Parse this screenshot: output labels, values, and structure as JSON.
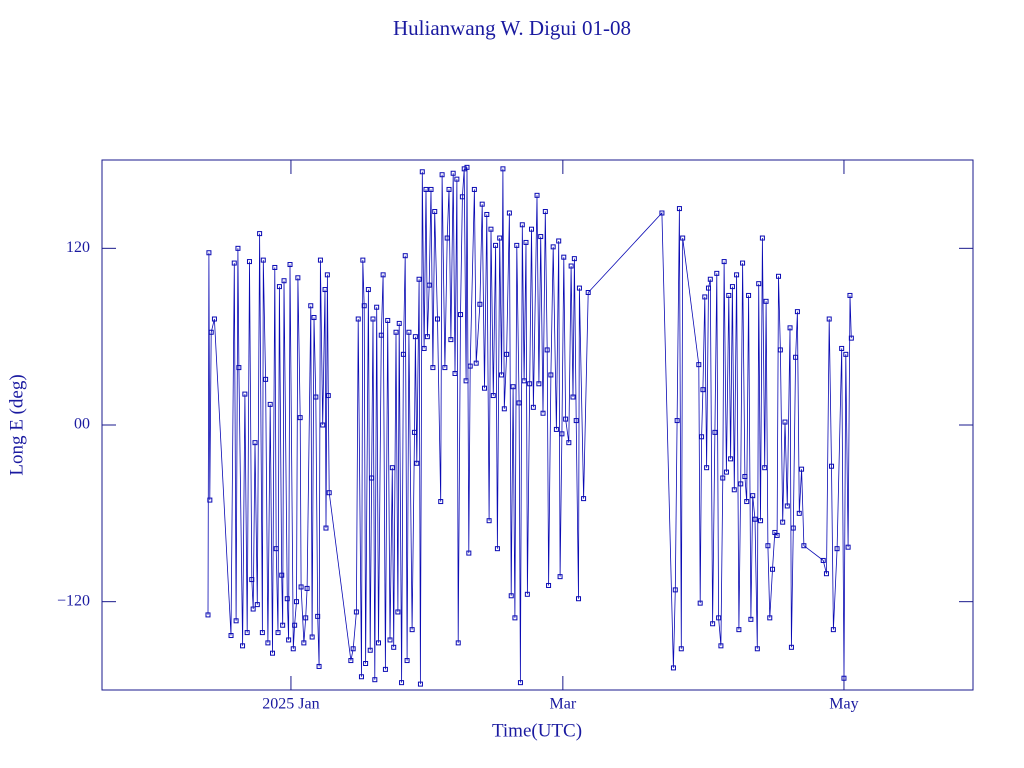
{
  "chart_data": {
    "type": "line",
    "title": "Hulianwang W. Digui 01-08",
    "xlabel": "Time(UTC)",
    "ylabel": "Long E (deg)",
    "color": "#0a0ab4",
    "axis_color": "#1a1a8c",
    "marker": "square",
    "xlim": [
      -41,
      148
    ],
    "ylim": [
      -180,
      180
    ],
    "xticks": [
      {
        "value": 0,
        "label": "2025 Jan"
      },
      {
        "value": 59,
        "label": "Mar"
      },
      {
        "value": 120,
        "label": "May"
      }
    ],
    "yticks": [
      {
        "value": -120,
        "label": "−120"
      },
      {
        "value": 0,
        "label": "00"
      },
      120
    ],
    "x": [
      -18.0,
      -17.8,
      -17.6,
      -17.3,
      -16.6,
      -13.0,
      -12.3,
      -11.9,
      -11.5,
      -11.3,
      -10.5,
      -10.0,
      -9.5,
      -9.0,
      -8.5,
      -8.2,
      -7.8,
      -7.3,
      -6.8,
      -6.2,
      -6.0,
      -5.5,
      -5.0,
      -4.5,
      -4.0,
      -3.5,
      -3.2,
      -2.8,
      -2.5,
      -2.0,
      -1.8,
      -1.5,
      -0.8,
      -0.5,
      -0.2,
      0.5,
      0.8,
      1.2,
      1.5,
      2.0,
      2.2,
      2.8,
      3.2,
      3.5,
      4.3,
      4.6,
      5.0,
      5.4,
      5.8,
      6.1,
      6.4,
      6.9,
      7.4,
      7.6,
      7.9,
      8.1,
      8.3,
      13.0,
      13.5,
      14.2,
      14.6,
      15.3,
      15.6,
      15.9,
      16.2,
      16.8,
      17.2,
      17.5,
      17.8,
      18.2,
      18.6,
      19.0,
      19.6,
      20.0,
      20.5,
      21.0,
      21.5,
      22.0,
      22.3,
      22.8,
      23.2,
      23.5,
      24.0,
      24.4,
      24.8,
      25.2,
      25.6,
      26.3,
      26.8,
      27.0,
      27.3,
      27.8,
      28.1,
      28.5,
      28.9,
      29.3,
      29.6,
      30.0,
      30.4,
      30.8,
      31.2,
      31.8,
      32.5,
      32.8,
      33.4,
      33.9,
      34.3,
      34.7,
      35.2,
      35.6,
      36.0,
      36.3,
      36.8,
      37.2,
      37.6,
      38.0,
      38.2,
      38.6,
      38.9,
      39.8,
      40.2,
      41.0,
      41.5,
      42.0,
      42.5,
      43.0,
      43.4,
      43.9,
      44.4,
      44.8,
      45.3,
      45.7,
      46.0,
      46.3,
      46.8,
      47.4,
      47.8,
      48.2,
      48.6,
      49.0,
      49.5,
      49.8,
      50.2,
      50.6,
      51.0,
      51.3,
      51.8,
      52.2,
      52.6,
      53.4,
      53.8,
      54.2,
      54.7,
      55.2,
      55.6,
      55.9,
      56.4,
      56.9,
      57.6,
      58.1,
      58.4,
      58.8,
      59.2,
      59.6,
      60.3,
      60.8,
      61.2,
      61.5,
      61.9,
      62.4,
      62.6,
      63.5,
      64.5,
      80.5,
      83.0,
      83.4,
      83.8,
      84.3,
      84.7,
      85.0,
      88.5,
      88.8,
      89.1,
      89.4,
      89.8,
      90.2,
      90.6,
      91.0,
      91.5,
      92.0,
      92.4,
      92.8,
      93.3,
      93.7,
      94.0,
      94.5,
      95.0,
      95.4,
      95.8,
      96.2,
      96.7,
      97.2,
      97.6,
      98.0,
      98.5,
      98.9,
      99.3,
      99.8,
      100.2,
      100.7,
      101.2,
      101.5,
      101.9,
      102.3,
      102.8,
      103.1,
      103.5,
      103.9,
      104.5,
      105.0,
      105.5,
      105.8,
      106.2,
      106.7,
      107.2,
      107.7,
      108.3,
      108.6,
      109.0,
      109.5,
      109.9,
      110.3,
      110.8,
      111.3,
      115.5,
      116.2,
      116.8,
      117.3,
      117.7,
      118.5,
      119.5,
      120.0,
      120.4,
      120.9,
      121.3,
      121.6
    ],
    "values": [
      -129,
      117,
      -51,
      63,
      72,
      -143,
      110,
      -133,
      120,
      39,
      -150,
      21,
      -141,
      111,
      -105,
      -125,
      -12,
      -122,
      130,
      -141,
      112,
      31,
      -148,
      14,
      -155,
      107,
      -84,
      -141,
      94,
      -102,
      -136,
      98,
      -118,
      -146,
      109,
      -152,
      -136,
      -120,
      100,
      5,
      -110,
      -148,
      -131,
      -111,
      81,
      -144,
      73,
      19,
      -130,
      -164,
      112,
      0,
      92,
      -70,
      102,
      20,
      -46,
      -160,
      -152,
      -127,
      72,
      -171,
      112,
      81,
      -162,
      92,
      -153,
      -36,
      72,
      -173,
      80,
      -148,
      61,
      102,
      -166,
      71,
      -146,
      -29,
      -151,
      63,
      -127,
      69,
      -175,
      48,
      115,
      -160,
      63,
      -139,
      -5,
      60,
      -26,
      99,
      -176,
      172,
      52,
      160,
      60,
      95,
      160,
      39,
      145,
      72,
      -52,
      170,
      39,
      127,
      160,
      58,
      171,
      35,
      167,
      -148,
      75,
      155,
      174,
      30,
      175,
      -87,
      40,
      160,
      42,
      82,
      150,
      25,
      143,
      -65,
      133,
      20,
      122,
      -84,
      127,
      34,
      174,
      11,
      48,
      144,
      -116,
      26,
      -131,
      122,
      15,
      -175,
      136,
      30,
      124,
      -115,
      28,
      133,
      12,
      156,
      28,
      128,
      8,
      145,
      51,
      -109,
      34,
      121,
      -3,
      125,
      -103,
      -6,
      114,
      4,
      -12,
      108,
      19,
      113,
      3,
      -118,
      93,
      -50,
      90,
      144,
      -165,
      -112,
      3,
      147,
      -152,
      127,
      41,
      -121,
      -8,
      24,
      87,
      -29,
      93,
      99,
      -135,
      -5,
      103,
      -131,
      -150,
      -36,
      111,
      -32,
      88,
      -23,
      94,
      -44,
      102,
      -139,
      -40,
      110,
      -35,
      -52,
      88,
      -132,
      -48,
      -64,
      -152,
      96,
      -65,
      127,
      -29,
      84,
      -82,
      -131,
      -98,
      -73,
      -75,
      101,
      51,
      -66,
      2,
      -55,
      66,
      -151,
      -70,
      46,
      77,
      -60,
      -30,
      -82,
      -92,
      -101,
      72,
      -28,
      -139,
      -84,
      52,
      -172,
      48,
      -83,
      88,
      59
    ]
  }
}
